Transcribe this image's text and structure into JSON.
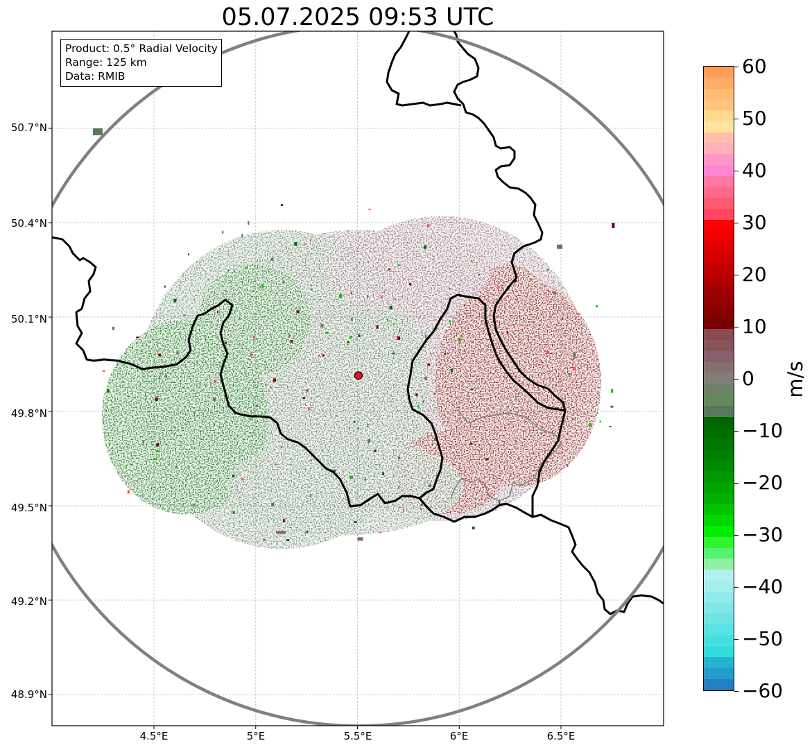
{
  "title": "05.07.2025 09:53 UTC",
  "info": {
    "product": "Product: 0.5° Radial Velocity",
    "range": "Range: 125 km",
    "source": "Data: RMIB"
  },
  "map": {
    "lon_range": [
      4.0,
      7.0
    ],
    "lat_range": [
      48.8,
      51.0
    ],
    "lat_ticks": [
      "50.7°N",
      "50.4°N",
      "50.1°N",
      "49.8°N",
      "49.5°N",
      "49.2°N",
      "48.9°N"
    ],
    "lon_ticks": [
      "4.5°E",
      "5°E",
      "5.5°E",
      "6°E",
      "6.5°E"
    ],
    "grid": true,
    "radar_site": {
      "lon": 5.505,
      "lat": 49.914,
      "marker_color": "#e8121d"
    },
    "range_ring_km": 125,
    "range_ring_color": "#808080",
    "border_color": "#000000",
    "inner_border_color": "#808080"
  },
  "colorbar": {
    "label": "m/s",
    "min": -60,
    "max": 60,
    "tick_labels": [
      "60",
      "50",
      "40",
      "30",
      "20",
      "10",
      "0",
      "−10",
      "−20",
      "−30",
      "−40",
      "−50",
      "−60"
    ],
    "colors_top_to_bottom": [
      "#ff9d57",
      "#ffac66",
      "#ffbc72",
      "#ffc47f",
      "#ffd98e",
      "#ffe29c",
      "#ffbfa8",
      "#ffb0bb",
      "#ff96c8",
      "#ff86d0",
      "#ff78a5",
      "#ff6a8c",
      "#ff5a70",
      "#ff4760",
      "#ff0000",
      "#f00000",
      "#e00000",
      "#d20000",
      "#c00000",
      "#b20000",
      "#a10000",
      "#930000",
      "#850000",
      "#7a0000",
      "#8a4b50",
      "#875558",
      "#86606a",
      "#86706e",
      "#837d7a",
      "#6f8269",
      "#628a5c",
      "#58795a",
      "#006600",
      "#006f00",
      "#007700",
      "#008000",
      "#008b00",
      "#009700",
      "#00a200",
      "#00b000",
      "#00c400",
      "#00d800",
      "#00ee00",
      "#30f530",
      "#58f070",
      "#8ef0a0",
      "#b4f0f0",
      "#a5eeee",
      "#90eaea",
      "#80e6e6",
      "#6ee4e4",
      "#58e2e2",
      "#44e0e0",
      "#30dcdc",
      "#26b4cc",
      "#249ccc",
      "#2280c0"
    ],
    "velocity_palette": {
      "strong_outbound": "#7a0000",
      "weak_outbound": "#86606a",
      "near_zero": "#86706e",
      "weak_inbound": "#58795a",
      "strong_inbound": "#006600",
      "bright_inbound": "#00c400",
      "fast_outbound_speckle": "#ff4760"
    }
  }
}
